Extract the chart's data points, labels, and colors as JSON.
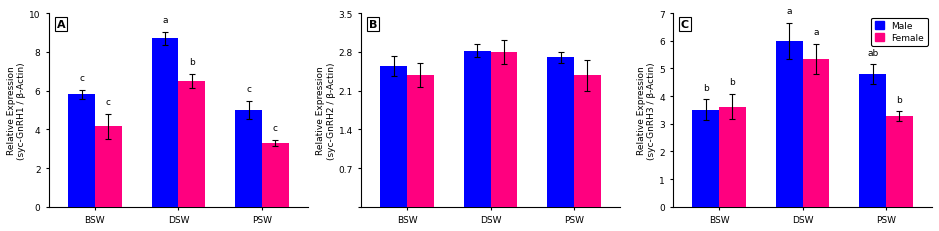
{
  "panels": [
    {
      "label": "A",
      "ylabel": "Relative Expression\n(syc-GnRH1 / β-Actin)",
      "ylim": [
        0,
        10.0
      ],
      "yticks": [
        0,
        2.0,
        4.0,
        6.0,
        8.0,
        10.0
      ],
      "groups": [
        "BSW",
        "DSW",
        "PSW"
      ],
      "male_values": [
        5.8,
        8.7,
        5.0
      ],
      "female_values": [
        4.15,
        6.5,
        3.3
      ],
      "male_errors": [
        0.25,
        0.35,
        0.45
      ],
      "female_errors": [
        0.65,
        0.35,
        0.15
      ],
      "male_letters": [
        "c",
        "a",
        "c"
      ],
      "female_letters": [
        "c",
        "b",
        "c"
      ]
    },
    {
      "label": "B",
      "ylabel": "Relative Expression\n(syc-GnRH2 / β-Actin)",
      "ylim": [
        0,
        3.5
      ],
      "yticks": [
        0.0,
        0.7,
        1.4,
        2.1,
        2.8,
        3.5
      ],
      "yticklabels": [
        "",
        "0.7",
        "1.4",
        "2.1",
        "2.8",
        "3.5"
      ],
      "groups": [
        "BSW",
        "DSW",
        "PSW"
      ],
      "male_values": [
        2.55,
        2.82,
        2.7
      ],
      "female_values": [
        2.38,
        2.8,
        2.38
      ],
      "male_errors": [
        0.18,
        0.12,
        0.1
      ],
      "female_errors": [
        0.22,
        0.22,
        0.28
      ],
      "male_letters": [
        "",
        "",
        ""
      ],
      "female_letters": [
        "",
        "",
        ""
      ]
    },
    {
      "label": "C",
      "ylabel": "Relative Expression\n(syc-GnRH3 / β-Actin)",
      "ylim": [
        0,
        7.0
      ],
      "yticks": [
        0,
        1.0,
        2.0,
        3.0,
        4.0,
        5.0,
        6.0,
        7.0
      ],
      "groups": [
        "BSW",
        "DSW",
        "PSW"
      ],
      "male_values": [
        3.5,
        6.0,
        4.8
      ],
      "female_values": [
        3.62,
        5.35,
        3.27
      ],
      "male_errors": [
        0.38,
        0.65,
        0.35
      ],
      "female_errors": [
        0.45,
        0.55,
        0.18
      ],
      "male_letters": [
        "b",
        "a",
        "ab"
      ],
      "female_letters": [
        "b",
        "a",
        "b"
      ]
    }
  ],
  "male_color": "#0000FF",
  "female_color": "#FF007F",
  "bar_width": 0.32,
  "background_color": "#ffffff",
  "letter_fontsize": 6.5,
  "tick_fontsize": 6.5,
  "ylabel_fontsize": 6.5,
  "xlabel_fontsize": 7.5
}
